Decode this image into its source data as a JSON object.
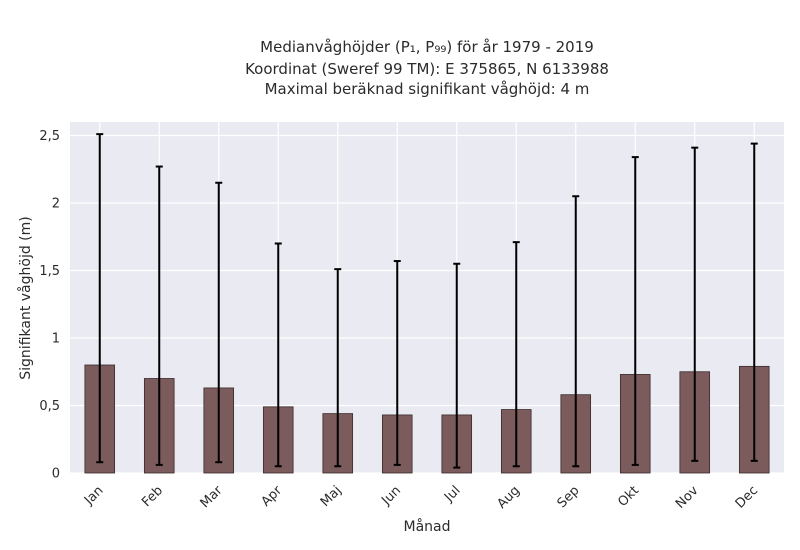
{
  "chart_data": {
    "type": "bar",
    "title_lines": [
      "Medianvåghöjder (P₁, P₉₉) för år 1979 - 2019",
      "Koordinat (Sweref 99 TM): E 375865, N 6133988",
      "Maximal beräknad signifikant våghöjd: 4 m"
    ],
    "xlabel": "Månad",
    "ylabel": "Signifikant våghöjd (m)",
    "categories": [
      "Jan",
      "Feb",
      "Mar",
      "Apr",
      "Maj",
      "Jun",
      "Jul",
      "Aug",
      "Sep",
      "Okt",
      "Nov",
      "Dec"
    ],
    "values": [
      0.8,
      0.7,
      0.63,
      0.49,
      0.44,
      0.43,
      0.43,
      0.47,
      0.58,
      0.73,
      0.75,
      0.79
    ],
    "error_low": [
      0.08,
      0.06,
      0.08,
      0.05,
      0.05,
      0.06,
      0.04,
      0.05,
      0.05,
      0.06,
      0.09,
      0.09
    ],
    "error_high": [
      2.51,
      2.27,
      2.15,
      1.7,
      1.51,
      1.57,
      1.55,
      1.71,
      2.05,
      2.34,
      2.41,
      2.44
    ],
    "ylim": [
      0,
      2.6
    ],
    "yticks": [
      0,
      0.5,
      1,
      1.5,
      2,
      2.5
    ],
    "ytick_labels": [
      "0",
      "0,5",
      "1",
      "1,5",
      "2",
      "2,5"
    ],
    "grid": true,
    "colors": {
      "bar_fill": "#7b5b5b",
      "bar_edge": "#3a2a2a",
      "error_bar": "#000000",
      "plot_background": "#eaeaf2",
      "grid": "#ffffff"
    }
  }
}
